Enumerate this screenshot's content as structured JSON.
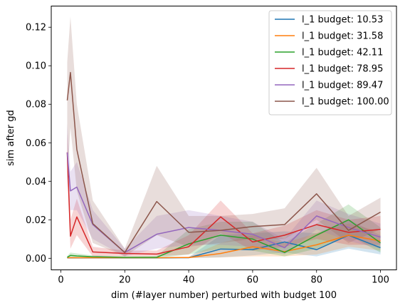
{
  "chart_data": {
    "type": "line",
    "xlabel": "dim (#layer number) perturbed with budget 100",
    "ylabel": "sim after gd",
    "xlim": [
      -3,
      105
    ],
    "ylim": [
      -0.006,
      0.131
    ],
    "x_ticks": [
      0,
      20,
      40,
      60,
      80,
      100
    ],
    "y_ticks": [
      0.0,
      0.02,
      0.04,
      0.06,
      0.08,
      0.1,
      0.12
    ],
    "y_tick_labels": [
      "0.00",
      "0.02",
      "0.04",
      "0.06",
      "0.08",
      "0.10",
      "0.12"
    ],
    "grid": false,
    "legend_position": "top-right",
    "x": [
      2,
      3,
      5,
      10,
      20,
      30,
      40,
      50,
      60,
      70,
      80,
      90,
      100
    ],
    "series": [
      {
        "name": "l_1 budget: 10.53",
        "color": "#1f77b4",
        "values": [
          0.0002,
          0.0002,
          0.0002,
          0.0002,
          0.0002,
          0.0002,
          0.0003,
          0.0048,
          0.0045,
          0.0085,
          0.0045,
          0.012,
          0.0055
        ],
        "lower": [
          0.0001,
          0.0001,
          0.0001,
          0.0001,
          0.0001,
          0.0001,
          0.0001,
          0.0005,
          0.0015,
          0.003,
          0.001,
          0.005,
          0.002
        ],
        "upper": [
          0.0004,
          0.0004,
          0.0004,
          0.0004,
          0.0004,
          0.0004,
          0.0006,
          0.012,
          0.013,
          0.014,
          0.013,
          0.02,
          0.012
        ]
      },
      {
        "name": "l_1 budget: 31.58",
        "color": "#ff7f0e",
        "values": [
          0.0003,
          0.0003,
          0.0003,
          0.0003,
          0.0003,
          0.0003,
          0.0004,
          0.0025,
          0.006,
          0.0035,
          0.007,
          0.012,
          0.009
        ],
        "lower": [
          0.0001,
          0.0001,
          0.0001,
          0.0001,
          0.0001,
          0.0001,
          0.0001,
          0.0005,
          0.001,
          0.001,
          0.002,
          0.006,
          0.004
        ],
        "upper": [
          0.0006,
          0.0006,
          0.0006,
          0.0006,
          0.0006,
          0.0006,
          0.0008,
          0.008,
          0.012,
          0.008,
          0.013,
          0.018,
          0.014
        ]
      },
      {
        "name": "l_1 budget: 42.11",
        "color": "#2ca02c",
        "values": [
          0.0005,
          0.0015,
          0.0012,
          0.0008,
          0.0005,
          0.0005,
          0.0075,
          0.012,
          0.01,
          0.003,
          0.012,
          0.02,
          0.008
        ],
        "lower": [
          0.0001,
          0.0005,
          0.0004,
          0.0002,
          0.0001,
          0.0001,
          0.002,
          0.005,
          0.004,
          0.001,
          0.005,
          0.012,
          0.003
        ],
        "upper": [
          0.0012,
          0.003,
          0.0025,
          0.0015,
          0.001,
          0.0012,
          0.015,
          0.019,
          0.019,
          0.008,
          0.018,
          0.028,
          0.016
        ]
      },
      {
        "name": "l_1 budget: 78.95",
        "color": "#d62728",
        "values": [
          0.055,
          0.0115,
          0.0215,
          0.0033,
          0.0025,
          0.0022,
          0.006,
          0.0215,
          0.0085,
          0.012,
          0.0175,
          0.0135,
          0.015
        ],
        "lower": [
          0.045,
          0.005,
          0.012,
          0.001,
          0.001,
          0.001,
          0.002,
          0.013,
          0.004,
          0.006,
          0.01,
          0.007,
          0.007
        ],
        "upper": [
          0.065,
          0.02,
          0.031,
          0.006,
          0.004,
          0.004,
          0.012,
          0.03,
          0.013,
          0.017,
          0.025,
          0.02,
          0.022
        ]
      },
      {
        "name": "l_1 budget: 89.47",
        "color": "#9467bd",
        "values": [
          0.055,
          0.035,
          0.037,
          0.0175,
          0.003,
          0.0125,
          0.016,
          0.0145,
          0.0125,
          0.0055,
          0.022,
          0.016,
          0.011
        ],
        "lower": [
          0.04,
          0.025,
          0.025,
          0.01,
          0.001,
          0.005,
          0.007,
          0.007,
          0.006,
          0.002,
          0.015,
          0.009,
          0.005
        ],
        "upper": [
          0.07,
          0.045,
          0.05,
          0.025,
          0.005,
          0.022,
          0.025,
          0.022,
          0.019,
          0.01,
          0.03,
          0.023,
          0.018
        ]
      },
      {
        "name": "l_1 budget: 100.00",
        "color": "#8c564b",
        "values": [
          0.082,
          0.0965,
          0.0565,
          0.018,
          0.003,
          0.0295,
          0.0135,
          0.0145,
          0.0165,
          0.0175,
          0.0335,
          0.0145,
          0.024
        ],
        "lower": [
          0.04,
          0.068,
          0.035,
          0.008,
          0.001,
          0.012,
          0.006,
          0.008,
          0.01,
          0.01,
          0.02,
          0.008,
          0.015
        ],
        "upper": [
          0.102,
          0.1255,
          0.08,
          0.03,
          0.005,
          0.048,
          0.022,
          0.022,
          0.023,
          0.026,
          0.047,
          0.022,
          0.0315
        ]
      }
    ]
  }
}
